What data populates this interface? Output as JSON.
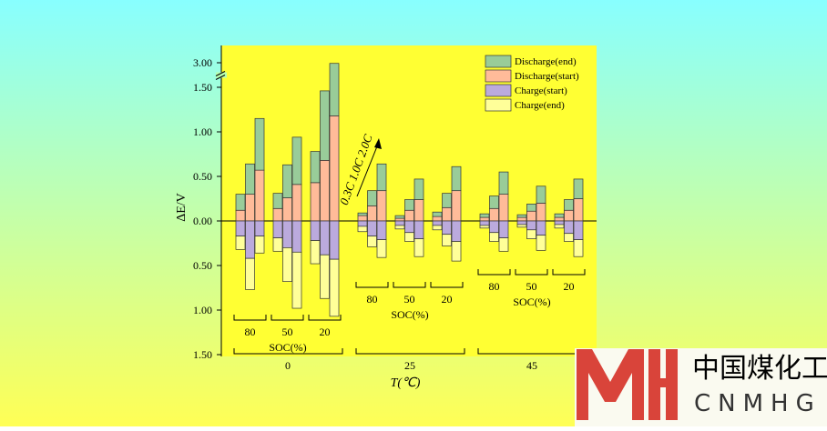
{
  "chart_data": {
    "type": "bar",
    "stacked": true,
    "y_label": "ΔE/V",
    "x_label": "T(℃)",
    "temperatures": [
      "0",
      "25",
      "45"
    ],
    "soc": [
      "80",
      "50",
      "20"
    ],
    "soc_label": "SOC(%)",
    "annotation": "0.3C  1.0C  2.0C",
    "ylim": [
      -1.5,
      3.0
    ],
    "axis_break": [
      1.5,
      3.0
    ],
    "yticks": [
      {
        "value": 3.0,
        "label": "3.00"
      },
      {
        "value": 1.5,
        "label": "1.50"
      },
      {
        "value": 1.0,
        "label": "1.00"
      },
      {
        "value": 0.5,
        "label": "0.50"
      },
      {
        "value": 0,
        "label": "0.00"
      },
      {
        "value": -0.5,
        "label": "0.50"
      },
      {
        "value": -1.0,
        "label": "1.00"
      },
      {
        "value": -1.5,
        "label": "1.50"
      }
    ],
    "legend": "upper right",
    "series": [
      {
        "name": "Discharge(end)",
        "color": "#99cc99",
        "values": [
          0.18,
          0.34,
          0.58,
          0.17,
          0.37,
          0.53,
          0.35,
          0.78,
          1.78,
          0.03,
          0.17,
          0.3,
          0.03,
          0.12,
          0.23,
          0.05,
          0.16,
          0.27,
          0.04,
          0.14,
          0.25,
          0.03,
          0.08,
          0.19,
          0.04,
          0.12,
          0.22
        ]
      },
      {
        "name": "Discharge(start)",
        "color": "#ffbb99",
        "values": [
          0.12,
          0.3,
          0.57,
          0.14,
          0.26,
          0.41,
          0.43,
          0.68,
          1.18,
          0.06,
          0.17,
          0.34,
          0.03,
          0.12,
          0.24,
          0.05,
          0.15,
          0.34,
          0.04,
          0.14,
          0.3,
          0.04,
          0.11,
          0.2,
          0.04,
          0.12,
          0.25
        ]
      },
      {
        "name": "Charge(start)",
        "color": "#bbaadd",
        "values": [
          -0.17,
          -0.42,
          -0.17,
          -0.19,
          -0.3,
          -0.35,
          -0.22,
          -0.38,
          -0.43,
          -0.06,
          -0.17,
          -0.21,
          -0.05,
          -0.13,
          -0.2,
          -0.05,
          -0.15,
          -0.23,
          -0.05,
          -0.13,
          -0.19,
          -0.04,
          -0.1,
          -0.16,
          -0.04,
          -0.14,
          -0.21
        ]
      },
      {
        "name": "Charge(end)",
        "color": "#ffff99",
        "values": [
          -0.15,
          -0.35,
          -0.19,
          -0.15,
          -0.38,
          -0.63,
          -0.26,
          -0.49,
          -0.64,
          -0.06,
          -0.12,
          -0.2,
          -0.04,
          -0.1,
          -0.2,
          -0.05,
          -0.13,
          -0.22,
          -0.03,
          -0.1,
          -0.15,
          -0.03,
          -0.1,
          -0.17,
          -0.04,
          -0.09,
          -0.19
        ]
      }
    ]
  },
  "watermark": {
    "title": "中国煤化工",
    "subtitle": "CNMHG"
  }
}
